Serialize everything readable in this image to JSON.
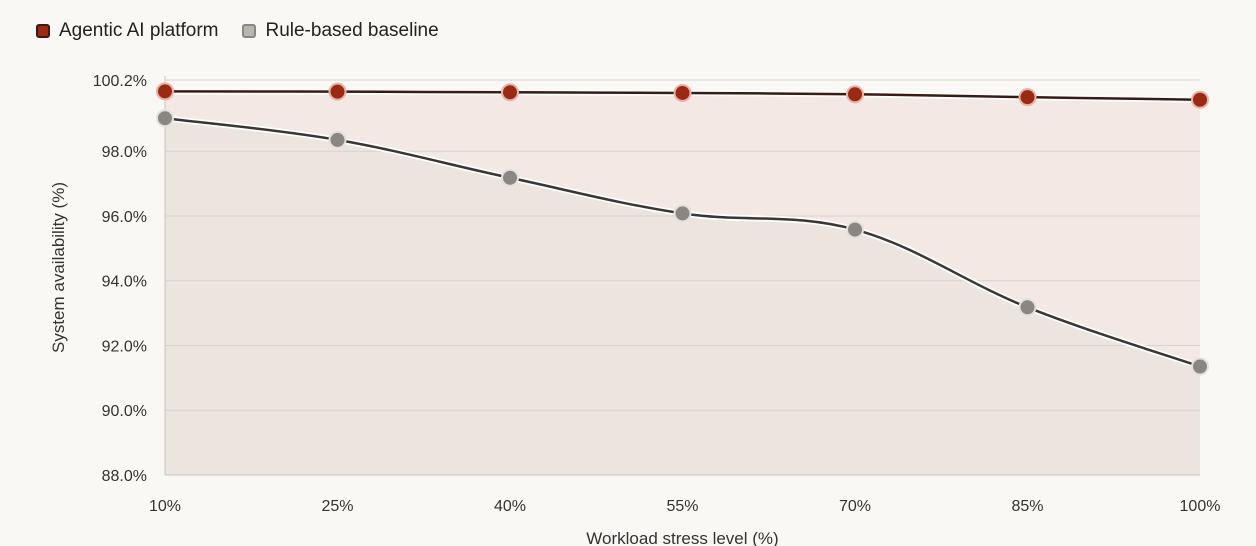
{
  "chart_data": {
    "type": "line",
    "xlabel": "Workload stress level (%)",
    "ylabel": "System availability (%)",
    "categories": [
      "10%",
      "25%",
      "40%",
      "55%",
      "70%",
      "85%",
      "100%"
    ],
    "ylim": [
      88.0,
      100.2
    ],
    "yticks": [
      "100.2%",
      "98.0%",
      "96.0%",
      "94.0%",
      "92.0%",
      "90.0%",
      "88.0%"
    ],
    "ytick_values": [
      100.2,
      98.0,
      96.0,
      94.0,
      92.0,
      90.0,
      88.0
    ],
    "grid": true,
    "legend_position": "top-left",
    "series": [
      {
        "name": "Agentic AI platform",
        "values": [
          99.85,
          99.84,
          99.82,
          99.8,
          99.76,
          99.67,
          99.59
        ],
        "line_color": "#3a1a12",
        "marker_color": "#9b2a14",
        "fill_color": "#f3e8e3"
      },
      {
        "name": "Rule-based baseline",
        "values": [
          99.02,
          98.35,
          97.18,
          96.08,
          95.58,
          93.18,
          91.35
        ],
        "line_color": "#3a3633",
        "marker_color": "#8a8782",
        "fill_color": "#ece4df"
      }
    ]
  }
}
